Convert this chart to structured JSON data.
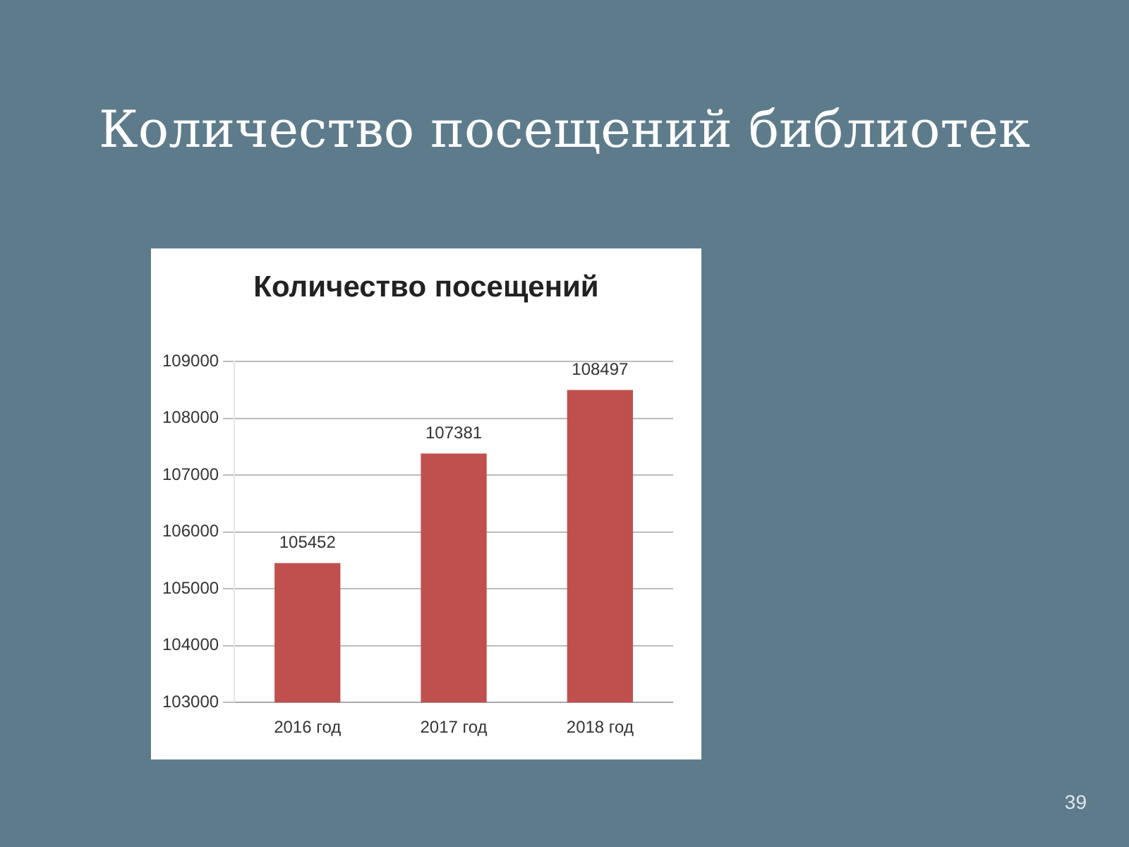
{
  "chart_data": {
    "type": "bar",
    "title": "Количество посещений библиотек",
    "subtitle": "Количество посещений",
    "categories": [
      "2016 год",
      "2017 год",
      "2018 год"
    ],
    "values": [
      105452,
      107381,
      108497
    ],
    "color": "#c0504d",
    "ylim": [
      103000,
      109000
    ],
    "yticks": [
      103000,
      104000,
      105000,
      106000,
      107000,
      108000,
      109000
    ],
    "grid": "y",
    "legend": false,
    "data_labels": true,
    "annotations": [
      "39"
    ]
  }
}
